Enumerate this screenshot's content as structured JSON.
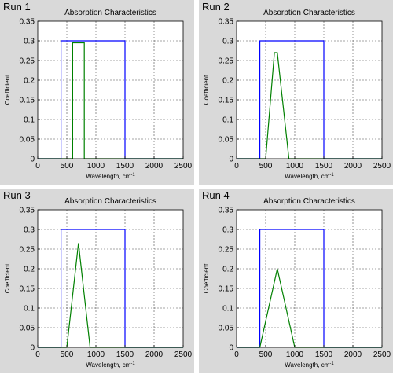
{
  "panels": [
    {
      "label": "Run 1"
    },
    {
      "label": "Run 2"
    },
    {
      "label": "Run 3"
    },
    {
      "label": "Run 4"
    }
  ],
  "colors": {
    "panel_bg": "#d9d9d9",
    "axes_bg": "#ffffff",
    "series_box": "#0000ff",
    "series_absorption": "#008000",
    "grid": "#000000"
  },
  "chart_data": [
    {
      "type": "line",
      "title": "Absorption Characteristics",
      "xlabel": "Wavelength, cm",
      "xlabel_superscript": "-1",
      "ylabel": "Coefficient",
      "xlim": [
        0,
        2500
      ],
      "ylim": [
        0,
        0.35
      ],
      "xticks": [
        0,
        500,
        1000,
        1500,
        2000,
        2500
      ],
      "yticks": [
        0,
        0.05,
        0.1,
        0.15,
        0.2,
        0.25,
        0.3,
        0.35
      ],
      "grid": true,
      "series": [
        {
          "x": [
            0,
            400,
            400,
            1500,
            1500,
            2500
          ],
          "y": [
            0,
            0,
            0.3,
            0.3,
            0,
            0
          ]
        },
        {
          "x": [
            0,
            600,
            600,
            800,
            800,
            2500
          ],
          "y": [
            0,
            0,
            0.295,
            0.295,
            0,
            0
          ]
        }
      ]
    },
    {
      "type": "line",
      "title": "Absorption Characteristics",
      "xlabel": "Wavelength, cm",
      "xlabel_superscript": "-1",
      "ylabel": "Coefficient",
      "xlim": [
        0,
        2500
      ],
      "ylim": [
        0,
        0.35
      ],
      "xticks": [
        0,
        500,
        1000,
        1500,
        2000,
        2500
      ],
      "yticks": [
        0,
        0.05,
        0.1,
        0.15,
        0.2,
        0.25,
        0.3,
        0.35
      ],
      "grid": true,
      "series": [
        {
          "x": [
            0,
            400,
            400,
            1500,
            1500,
            2500
          ],
          "y": [
            0,
            0,
            0.3,
            0.3,
            0,
            0
          ]
        },
        {
          "x": [
            0,
            500,
            650,
            700,
            900,
            2500
          ],
          "y": [
            0,
            0,
            0.27,
            0.27,
            0,
            0
          ]
        }
      ]
    },
    {
      "type": "line",
      "title": "Absorption Characteristics",
      "xlabel": "Wavelength, cm",
      "xlabel_superscript": "-1",
      "ylabel": "Coefficient",
      "xlim": [
        0,
        2500
      ],
      "ylim": [
        0,
        0.35
      ],
      "xticks": [
        0,
        500,
        1000,
        1500,
        2000,
        2500
      ],
      "yticks": [
        0,
        0.05,
        0.1,
        0.15,
        0.2,
        0.25,
        0.3,
        0.35
      ],
      "grid": true,
      "series": [
        {
          "x": [
            0,
            400,
            400,
            1500,
            1500,
            2500
          ],
          "y": [
            0,
            0,
            0.3,
            0.3,
            0,
            0
          ]
        },
        {
          "x": [
            0,
            500,
            700,
            900,
            2500
          ],
          "y": [
            0,
            0,
            0.265,
            0,
            0
          ]
        }
      ]
    },
    {
      "type": "line",
      "title": "Absorption Characteristics",
      "xlabel": "Wavelength, cm",
      "xlabel_superscript": "-1",
      "ylabel": "Coefficient",
      "xlim": [
        0,
        2500
      ],
      "ylim": [
        0,
        0.35
      ],
      "xticks": [
        0,
        500,
        1000,
        1500,
        2000,
        2500
      ],
      "yticks": [
        0,
        0.05,
        0.1,
        0.15,
        0.2,
        0.25,
        0.3,
        0.35
      ],
      "grid": true,
      "series": [
        {
          "x": [
            0,
            400,
            400,
            1500,
            1500,
            2500
          ],
          "y": [
            0,
            0,
            0.3,
            0.3,
            0,
            0
          ]
        },
        {
          "x": [
            0,
            400,
            700,
            1000,
            2500
          ],
          "y": [
            0,
            0,
            0.2,
            0,
            0
          ]
        }
      ]
    }
  ]
}
